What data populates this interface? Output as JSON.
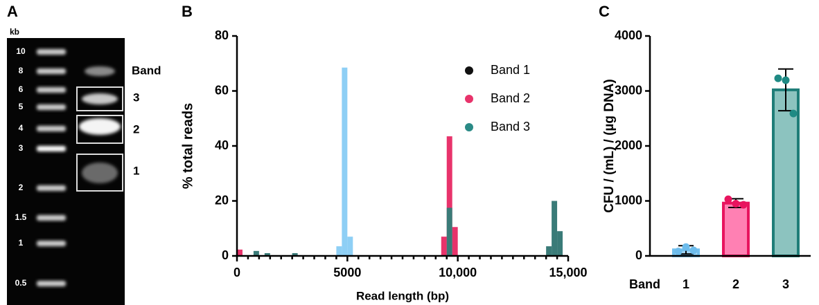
{
  "panel_labels": [
    "A",
    "B",
    "C"
  ],
  "gel": {
    "unit": "kb",
    "ladder": [
      "10",
      "8",
      "6",
      "5",
      "4",
      "3",
      "2",
      "1.5",
      "1",
      "0.5"
    ],
    "band_title": "Band",
    "bands": [
      "3",
      "2",
      "1"
    ]
  },
  "chart_data": [
    {
      "type": "histogram",
      "y_label": "% total reads",
      "x_label": "Read length (bp)",
      "xlim": [
        0,
        15000
      ],
      "ylim": [
        0,
        80
      ],
      "xticks": [
        0,
        5000,
        {
          "value": 10000,
          "label": "10,000"
        },
        {
          "value": 15000,
          "label": "15,000"
        }
      ],
      "yticks": [
        0,
        20,
        40,
        60,
        80
      ],
      "bin_width": 250,
      "legend": "upper-right",
      "series": [
        {
          "name": "Band 1",
          "color": "#8ecff5",
          "marker_color": "#111111",
          "x": [
            4625,
            4875,
            5125
          ],
          "values": [
            3.5,
            68.5,
            7
          ]
        },
        {
          "name": "Band 2",
          "color": "#e8336b",
          "marker_color": "#e8336b",
          "x": [
            125,
            9375,
            9625,
            9875
          ],
          "values": [
            2.3,
            7,
            43.5,
            10.5
          ]
        },
        {
          "name": "Band 3",
          "color": "#3a7b78",
          "marker_color": "#2a8a86",
          "x": [
            875,
            1375,
            2625,
            9625,
            14125,
            14375,
            14625
          ],
          "values": [
            1.8,
            1,
            1,
            17.5,
            3.5,
            20,
            9
          ]
        }
      ]
    },
    {
      "type": "bar",
      "y_label": "CFU / (mL) / (µg DNA)",
      "x_label": "Band",
      "categories": [
        "1",
        "2",
        "3"
      ],
      "values": [
        110,
        960,
        3020
      ],
      "errors": [
        75,
        80,
        380
      ],
      "points": [
        [
          80,
          160,
          100
        ],
        [
          1030,
          950,
          930
        ],
        [
          3230,
          3195,
          2590
        ]
      ],
      "colors": [
        "#a4d6f3",
        "#ff80b3",
        "#8cc3bf"
      ],
      "edge_colors": [
        "#72c0ee",
        "#e8145f",
        "#1f7d78"
      ],
      "point_colors": [
        "#6dbcec",
        "#e8145f",
        "#1f8a84"
      ],
      "ylim": [
        0,
        4000
      ],
      "yticks": [
        0,
        1000,
        2000,
        3000,
        4000
      ]
    }
  ]
}
